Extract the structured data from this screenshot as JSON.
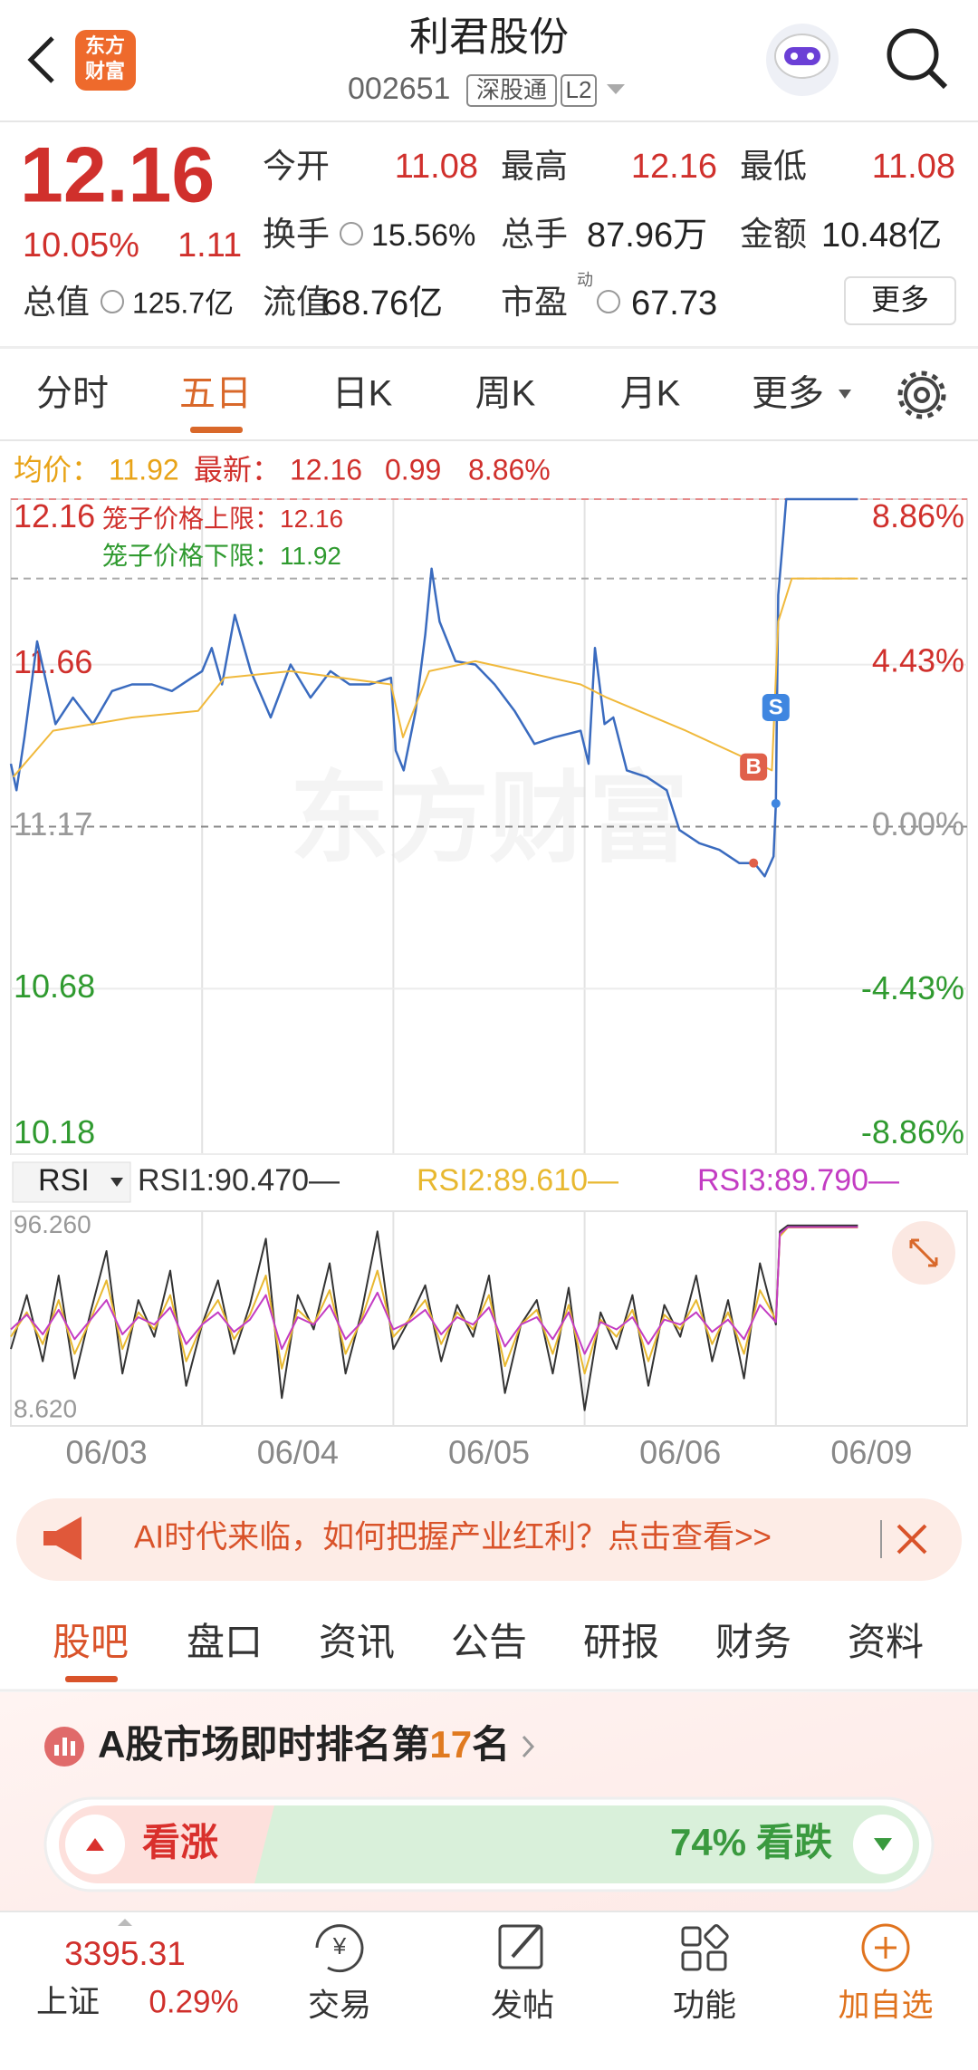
{
  "header": {
    "title": "利君股份",
    "code": "002651",
    "badges": [
      "深股通",
      "L2"
    ],
    "logo": [
      "东方",
      "财富"
    ]
  },
  "quote": {
    "price": "12.16",
    "change_pct": "10.05%",
    "change": "1.11",
    "stats": [
      {
        "label": "今开",
        "value": "11.08"
      },
      {
        "label": "最高",
        "value": "12.16"
      },
      {
        "label": "最低",
        "value": "11.08"
      },
      {
        "label": "换手",
        "value": "15.56%"
      },
      {
        "label": "总手",
        "value": "87.96万"
      },
      {
        "label": "金额",
        "value": "10.48亿"
      },
      {
        "label": "流值",
        "value": "68.76亿"
      },
      {
        "label": "市盈",
        "value": "67.73"
      }
    ],
    "total_value": {
      "label": "总值",
      "value": "125.7亿"
    },
    "pe_tag": "动",
    "more": "更多"
  },
  "period_tabs": [
    "分时",
    "五日",
    "日K",
    "周K",
    "月K",
    "更多"
  ],
  "info": [
    {
      "label": "均价：",
      "value": "11.92"
    },
    {
      "label": "最新：",
      "value": "12.16"
    },
    {
      "value": "0.99"
    },
    {
      "value": "8.86%"
    }
  ],
  "chart_data": [
    {
      "type": "line",
      "watermark": "东方财富",
      "xlim": [
        0,
        1200
      ],
      "ylim": [
        10.18,
        12.16
      ],
      "yticks": [
        12.16,
        11.66,
        11.17,
        10.68,
        10.18
      ],
      "y2lim": [
        -8.86,
        8.86
      ],
      "y2ticks": [
        {
          "value": 8.86,
          "label": "8.86%"
        },
        {
          "value": 4.43,
          "label": "4.43%"
        },
        {
          "value": 0,
          "label": "0.00%"
        },
        {
          "value": -4.43,
          "label": "-4.43%"
        },
        {
          "value": -8.86,
          "label": "-8.86%"
        }
      ],
      "limits": [
        {
          "label": "笼子价格上限：",
          "value": 12.16,
          "color": "#d0302c"
        },
        {
          "label": "笼子价格下限：",
          "value": 11.92,
          "color": "#2f9a2f"
        }
      ],
      "series": [
        {
          "color": "#3a6bbf",
          "x": [
            0,
            7,
            17,
            33,
            45,
            56,
            78,
            103,
            127,
            152,
            177,
            202,
            227,
            240,
            252,
            265,
            281,
            301,
            326,
            351,
            376,
            401,
            425,
            450,
            477,
            483,
            493,
            508,
            520,
            528,
            538,
            558,
            583,
            607,
            632,
            657,
            682,
            715,
            725,
            733,
            745,
            756,
            773,
            798,
            823,
            839,
            864,
            889,
            914,
            933,
            946,
            957,
            960,
            963,
            970,
            973,
            1063
          ],
          "values": [
            11.36,
            11.28,
            11.44,
            11.73,
            11.6,
            11.48,
            11.56,
            11.48,
            11.58,
            11.6,
            11.6,
            11.58,
            11.62,
            11.64,
            11.71,
            11.6,
            11.81,
            11.64,
            11.5,
            11.66,
            11.56,
            11.64,
            11.6,
            11.6,
            11.62,
            11.4,
            11.34,
            11.52,
            11.75,
            11.95,
            11.79,
            11.67,
            11.66,
            11.6,
            11.52,
            11.42,
            11.44,
            11.46,
            11.36,
            11.71,
            11.48,
            11.5,
            11.34,
            11.32,
            11.28,
            11.16,
            11.12,
            11.1,
            11.06,
            11.06,
            11.02,
            11.08,
            11.24,
            11.87,
            12.07,
            12.16,
            12.16
          ]
        },
        {
          "color": "#f0b93c",
          "x": [
            3,
            53,
            152,
            235,
            268,
            351,
            477,
            492,
            525,
            583,
            715,
            748,
            847,
            955,
            963,
            980,
            1063
          ],
          "values": [
            11.32,
            11.46,
            11.5,
            11.52,
            11.62,
            11.64,
            11.6,
            11.44,
            11.64,
            11.67,
            11.6,
            11.56,
            11.46,
            11.34,
            11.79,
            11.92,
            11.92
          ]
        }
      ],
      "markers": [
        {
          "label": "B",
          "x": 932,
          "y": 11.06,
          "color": "#e0604a"
        },
        {
          "label": "S",
          "x": 960,
          "y": 11.24,
          "color": "#3f86e0"
        }
      ]
    },
    {
      "type": "line",
      "selector": "RSI",
      "xlim": [
        0,
        1200
      ],
      "xticks": [
        {
          "value": 120,
          "label": "06/03"
        },
        {
          "value": 360,
          "label": "06/04"
        },
        {
          "value": 600,
          "label": "06/05"
        },
        {
          "value": 840,
          "label": "06/06"
        },
        {
          "value": 1080,
          "label": "06/09"
        }
      ],
      "ylim": [
        8.62,
        96.26
      ],
      "yticks": [
        {
          "value": 96.26,
          "label": "96.260"
        },
        {
          "value": 8.62,
          "label": "8.620"
        }
      ],
      "x": [
        0,
        20,
        40,
        60,
        80,
        100,
        120,
        140,
        160,
        180,
        200,
        220,
        240,
        260,
        280,
        300,
        320,
        340,
        360,
        380,
        400,
        420,
        440,
        460,
        480,
        500,
        520,
        540,
        560,
        580,
        600,
        620,
        640,
        660,
        680,
        700,
        720,
        740,
        760,
        780,
        800,
        820,
        840,
        860,
        880,
        900,
        920,
        940,
        960,
        965,
        975,
        1063
      ],
      "series": [
        {
          "name": "RSI1:90.470—",
          "color": "#333333",
          "values": [
            40,
            62,
            35,
            70,
            28,
            55,
            80,
            30,
            60,
            45,
            72,
            25,
            50,
            68,
            38,
            58,
            85,
            20,
            62,
            48,
            75,
            30,
            55,
            88,
            40,
            52,
            66,
            35,
            58,
            45,
            70,
            22,
            50,
            60,
            30,
            65,
            15,
            55,
            40,
            62,
            25,
            58,
            45,
            70,
            35,
            60,
            28,
            75,
            50,
            88,
            90.47,
            90.47
          ]
        },
        {
          "name": "RSI2:89.610—",
          "color": "#e8b830",
          "values": [
            45,
            55,
            42,
            60,
            38,
            52,
            68,
            40,
            55,
            48,
            62,
            35,
            50,
            60,
            44,
            54,
            70,
            32,
            56,
            50,
            64,
            38,
            52,
            72,
            45,
            52,
            60,
            42,
            55,
            48,
            62,
            33,
            50,
            56,
            38,
            58,
            30,
            52,
            45,
            56,
            35,
            54,
            48,
            60,
            42,
            55,
            38,
            64,
            52,
            86,
            89.61,
            89.61
          ]
        },
        {
          "name": "RSI3:89.790—",
          "color": "#c33cc3",
          "values": [
            48,
            54,
            46,
            56,
            44,
            52,
            60,
            46,
            53,
            50,
            57,
            42,
            50,
            55,
            47,
            52,
            62,
            40,
            53,
            50,
            58,
            44,
            51,
            63,
            48,
            51,
            56,
            46,
            53,
            50,
            57,
            41,
            50,
            53,
            44,
            55,
            38,
            51,
            48,
            53,
            42,
            52,
            50,
            55,
            47,
            52,
            44,
            58,
            51,
            87,
            89.79,
            89.79
          ]
        }
      ]
    }
  ],
  "banner": {
    "text": "AI时代来临，如何把握产业红利？点击查看>>"
  },
  "section_tabs": [
    "股吧",
    "盘口",
    "资讯",
    "公告",
    "研报",
    "财务",
    "资料"
  ],
  "rank": {
    "prefix": "A股市场即时排名第",
    "number": "17",
    "suffix": "名"
  },
  "sentiment": {
    "bull": "看涨",
    "bear_pct": "74%",
    "bear": "看跌"
  },
  "bottom_nav": {
    "index_value": "3395.31",
    "index_name": "上证",
    "index_change": "0.29%",
    "items": [
      "交易",
      "发帖",
      "功能",
      "加自选"
    ]
  }
}
